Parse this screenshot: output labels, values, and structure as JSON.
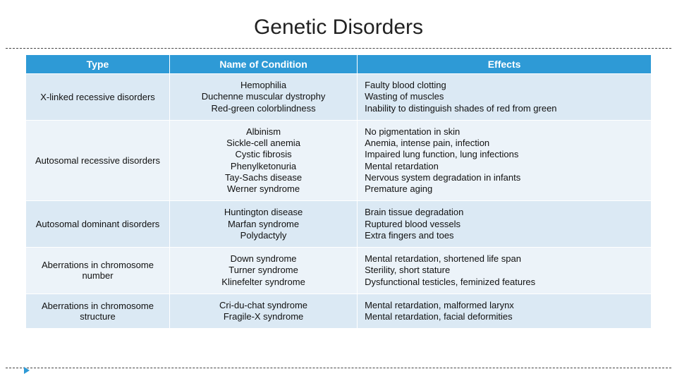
{
  "title": "Genetic Disorders",
  "colors": {
    "header_bg": "#2e9ad6",
    "band_a": "#dbe9f4",
    "band_b": "#ecf3f9"
  },
  "table": {
    "columns": [
      "Type",
      "Name of Condition",
      "Effects"
    ],
    "rows": [
      {
        "type": "X-linked recessive disorders",
        "conditions": "Hemophilia\nDuchenne muscular dystrophy\nRed-green colorblindness",
        "effects": "Faulty blood clotting\nWasting of muscles\nInability to distinguish shades of red from green"
      },
      {
        "type": "Autosomal recessive disorders",
        "conditions": "Albinism\nSickle-cell anemia\nCystic fibrosis\nPhenylketonuria\nTay-Sachs disease\nWerner syndrome",
        "effects": "No pigmentation in skin\nAnemia, intense pain, infection\nImpaired lung function, lung infections\nMental retardation\nNervous system degradation in infants\nPremature aging"
      },
      {
        "type": "Autosomal dominant disorders",
        "conditions": "Huntington disease\nMarfan syndrome\nPolydactyly",
        "effects": "Brain tissue degradation\nRuptured blood vessels\nExtra fingers and toes"
      },
      {
        "type": "Aberrations in chromosome number",
        "conditions": "Down syndrome\nTurner syndrome\nKlinefelter syndrome",
        "effects": "Mental retardation, shortened life span\nSterility, short stature\nDysfunctional testicles, feminized features"
      },
      {
        "type": "Aberrations in chromosome structure",
        "conditions": "Cri-du-chat syndrome\nFragile-X syndrome",
        "effects": "Mental retardation, malformed larynx\nMental retardation, facial deformities"
      }
    ]
  }
}
